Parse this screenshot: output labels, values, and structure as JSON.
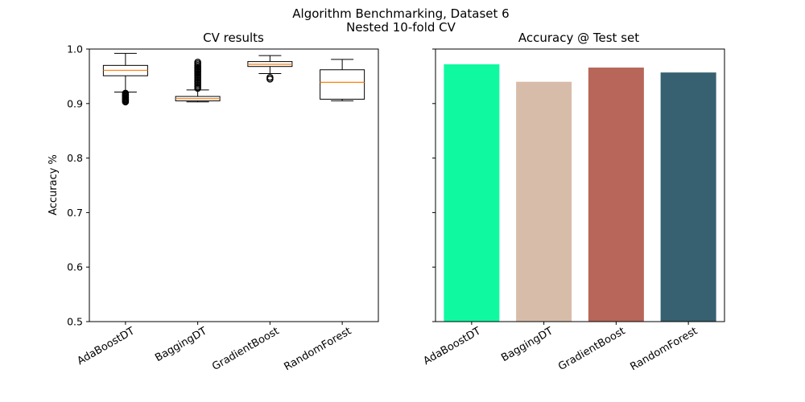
{
  "figure": {
    "suptitle_line1": "Algorithm Benchmarking, Dataset 6",
    "suptitle_line2": "Nested 10-fold CV"
  },
  "chart_data": [
    {
      "type": "box",
      "title": "CV results",
      "xlabel": "",
      "ylabel": "Accuracy %",
      "ylim": [
        0.5,
        1.0
      ],
      "yticks": [
        0.5,
        0.6,
        0.7,
        0.8,
        0.9,
        1.0
      ],
      "ytick_labels": [
        "0.5",
        "0.6",
        "0.7",
        "0.8",
        "0.9",
        "1.0"
      ],
      "grid": false,
      "categories": [
        "AdaBoostDT",
        "BaggingDT",
        "GradientBoost",
        "RandomForest"
      ],
      "boxes": [
        {
          "whislo": 0.921,
          "q1": 0.951,
          "med": 0.961,
          "q3": 0.97,
          "whishi": 0.992,
          "fliers": [
            0.903,
            0.905,
            0.907,
            0.909,
            0.911,
            0.913,
            0.915,
            0.917,
            0.919
          ]
        },
        {
          "whislo": 0.903,
          "q1": 0.905,
          "med": 0.909,
          "q3": 0.913,
          "whishi": 0.925,
          "fliers": [
            0.928,
            0.931,
            0.934,
            0.937,
            0.94,
            0.943,
            0.946,
            0.949,
            0.952,
            0.955,
            0.958,
            0.961,
            0.964,
            0.967,
            0.97,
            0.973,
            0.976
          ]
        },
        {
          "whislo": 0.955,
          "q1": 0.968,
          "med": 0.972,
          "q3": 0.977,
          "whishi": 0.988,
          "fliers": [
            0.945,
            0.948
          ]
        },
        {
          "whislo": 0.905,
          "q1": 0.908,
          "med": 0.939,
          "q3": 0.962,
          "whishi": 0.981,
          "fliers": []
        }
      ]
    },
    {
      "type": "bar",
      "title": "Accuracy @ Test set",
      "xlabel": "",
      "ylabel": "",
      "ylim": [
        0.5,
        1.0
      ],
      "grid": false,
      "categories": [
        "AdaBoostDT",
        "BaggingDT",
        "GradientBoost",
        "RandomForest"
      ],
      "values": [
        0.972,
        0.94,
        0.966,
        0.957
      ],
      "colors": [
        "#0ff9a1",
        "#d8bcaa",
        "#b8655a",
        "#376170"
      ]
    }
  ]
}
